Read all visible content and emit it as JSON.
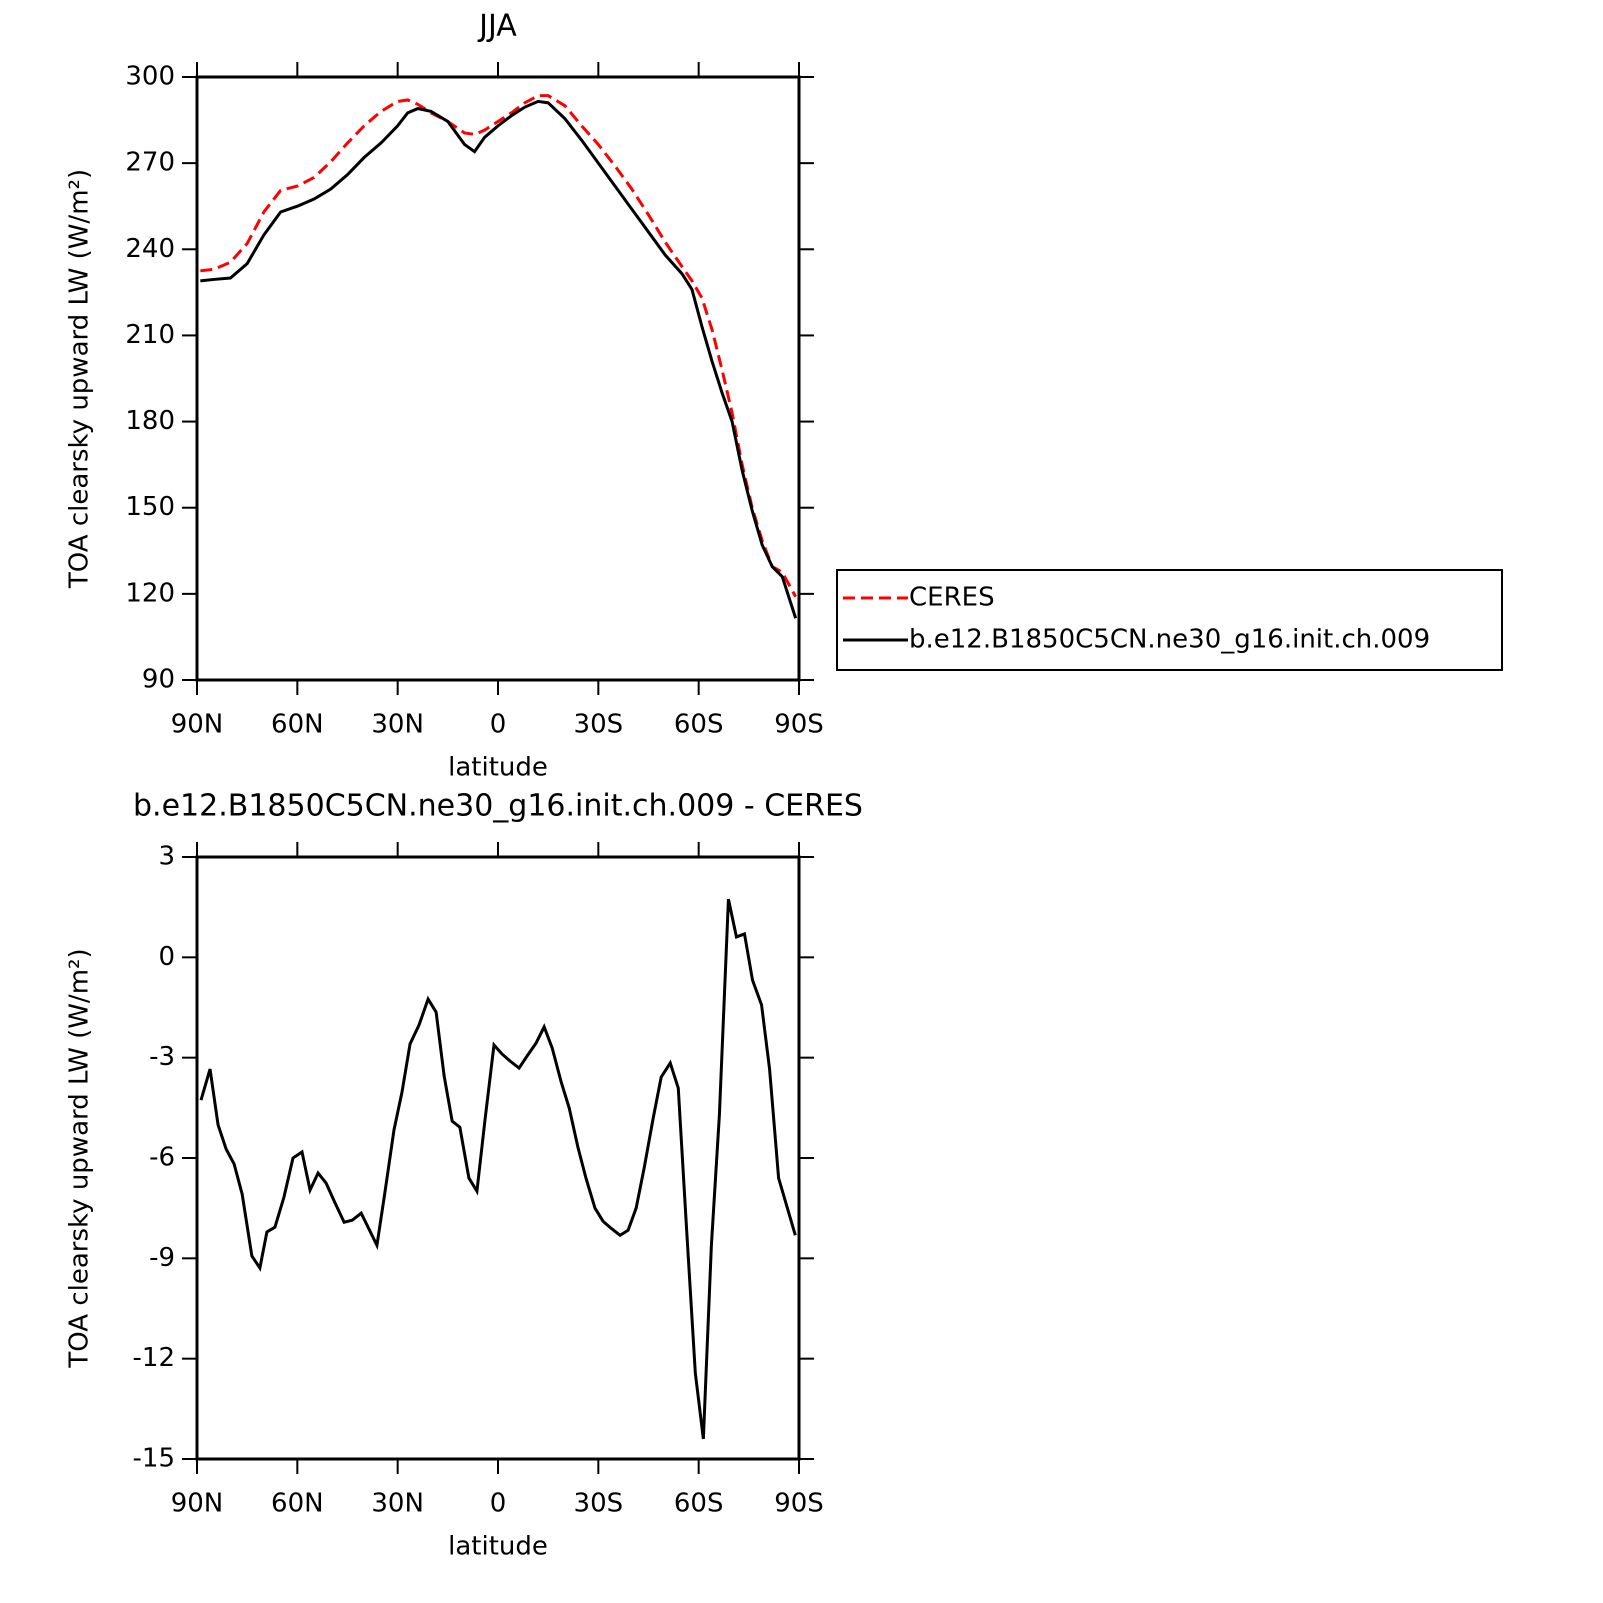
{
  "chart_data": [
    {
      "type": "line",
      "title": "JJA",
      "xlabel": "latitude",
      "ylabel": "TOA clearsky upward LW (W/m²)",
      "x": [
        89,
        85,
        80,
        75,
        70,
        65,
        60,
        55,
        50,
        45,
        40,
        35,
        30,
        27,
        24,
        20,
        15,
        10,
        7,
        4,
        0,
        -4,
        -8,
        -12,
        -15,
        -20,
        -25,
        -30,
        -35,
        -40,
        -45,
        -50,
        -55,
        -58,
        -61,
        -64,
        -67,
        -70,
        -73,
        -76,
        -79,
        -82,
        -85,
        -89
      ],
      "series": [
        {
          "name": "CERES",
          "color": "#ff0000",
          "linestyle": "dashed",
          "values": [
            232.5,
            233,
            235.5,
            242,
            253,
            260.5,
            262,
            265,
            270.5,
            277,
            283,
            288,
            291.5,
            292,
            290.5,
            287.5,
            284.5,
            280.5,
            280,
            281.5,
            284.5,
            287.5,
            291,
            293.5,
            293.5,
            290,
            283,
            276.5,
            269,
            261,
            252,
            242.5,
            234,
            229,
            223,
            212,
            198,
            183,
            165,
            150,
            138.5,
            129.5,
            127.5,
            119
          ]
        },
        {
          "name": "b.e12.B1850C5CN.ne30_g16.init.ch.009",
          "color": "#000000",
          "linestyle": "solid",
          "values": [
            229,
            229.5,
            230,
            235,
            245,
            253,
            255,
            257.5,
            261,
            266,
            272,
            277,
            283,
            287.5,
            289,
            288,
            284.5,
            276.5,
            274,
            279,
            283,
            286.5,
            289.5,
            291.5,
            291,
            285.5,
            278,
            270,
            262,
            254,
            246,
            238,
            231.5,
            226,
            213,
            201,
            190,
            180,
            163,
            149,
            137,
            129.5,
            126,
            111.5
          ]
        }
      ],
      "xlim": [
        90,
        -90
      ],
      "xticks": [
        {
          "value": 90,
          "label": "90N"
        },
        {
          "value": 60,
          "label": "60N"
        },
        {
          "value": 30,
          "label": "30N"
        },
        0,
        {
          "value": -30,
          "label": "30S"
        },
        {
          "value": -60,
          "label": "60S"
        },
        {
          "value": -90,
          "label": "90S"
        }
      ],
      "ylim": [
        90,
        300
      ],
      "yticks": [
        90,
        120,
        150,
        180,
        210,
        240,
        270,
        300
      ],
      "grid": false,
      "legend": "right"
    },
    {
      "type": "line",
      "title": "b.e12.B1850C5CN.ne30_g16.init.ch.009 - CERES",
      "xlabel": "latitude",
      "ylabel": "TOA clearsky upward LW (W/m²)",
      "x": [
        88.8,
        86.1,
        83.7,
        81.3,
        78.9,
        76.5,
        73.6,
        71.2,
        69.1,
        66.7,
        64,
        61.3,
        58.6,
        56.2,
        53.8,
        51.4,
        48.7,
        46,
        43.6,
        40.9,
        36.2,
        33.8,
        31.1,
        28.7,
        26.3,
        23.6,
        20.9,
        18.5,
        16.1,
        13.7,
        11.4,
        8.7,
        6.3,
        3.9,
        1.2,
        -1.2,
        -3.6,
        -6.3,
        -8.7,
        -11.4,
        -13.8,
        -16.2,
        -18.9,
        -21.3,
        -23.9,
        -26.3,
        -29,
        -31.4,
        -33.8,
        -36.5,
        -38.9,
        -41.3,
        -43.7,
        -46.4,
        -48.8,
        -51.5,
        -53.9,
        -56.3,
        -59,
        -61.4,
        -63.8,
        -66.2,
        -68.9,
        -71.3,
        -73.7,
        -76.1,
        -78.8,
        -81.2,
        -83.9,
        -88.9
      ],
      "series": [
        {
          "color": "#000000",
          "linestyle": "solid",
          "values": [
            -4.27,
            -3.34,
            -5.01,
            -5.73,
            -6.18,
            -7.08,
            -8.93,
            -9.29,
            -8.21,
            -8.07,
            -7.17,
            -6.0,
            -5.82,
            -6.96,
            -6.45,
            -6.75,
            -7.35,
            -7.92,
            -7.86,
            -7.65,
            -8.61,
            -7.02,
            -5.16,
            -4.03,
            -2.59,
            -2.02,
            -1.25,
            -1.64,
            -3.55,
            -4.9,
            -5.08,
            -6.6,
            -6.99,
            -4.87,
            -2.62,
            -2.89,
            -3.1,
            -3.31,
            -2.95,
            -2.56,
            -2.08,
            -2.71,
            -3.73,
            -4.51,
            -5.68,
            -6.6,
            -7.5,
            -7.89,
            -8.1,
            -8.31,
            -8.16,
            -7.5,
            -6.3,
            -4.81,
            -3.58,
            -3.16,
            -3.91,
            -7.98,
            -12.43,
            -14.4,
            -8.61,
            -4.71,
            1.74,
            0.61,
            0.7,
            -0.68,
            -1.42,
            -3.34,
            -6.6,
            -8.31
          ]
        }
      ],
      "xlim": [
        90,
        -90
      ],
      "xticks": [
        {
          "value": 90,
          "label": "90N"
        },
        {
          "value": 60,
          "label": "60N"
        },
        {
          "value": 30,
          "label": "30N"
        },
        0,
        {
          "value": -30,
          "label": "30S"
        },
        {
          "value": -60,
          "label": "60S"
        },
        {
          "value": -90,
          "label": "90S"
        }
      ],
      "ylim": [
        -15,
        3
      ],
      "yticks": [
        -15,
        -12,
        -9,
        -6,
        -3,
        0,
        3
      ],
      "grid": false
    }
  ]
}
